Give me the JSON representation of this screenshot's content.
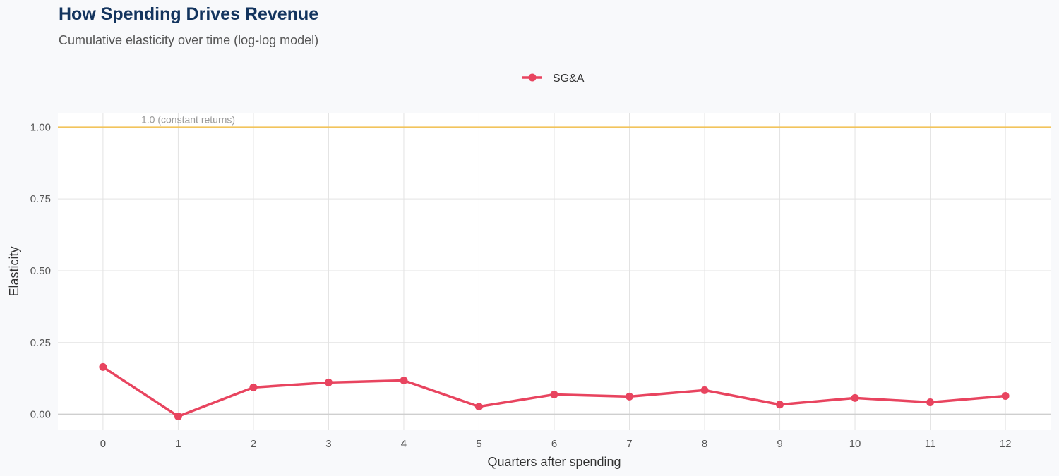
{
  "chart_data": {
    "type": "line",
    "title": "How Spending Drives Revenue",
    "subtitle": "Cumulative elasticity over time (log-log model)",
    "xlabel": "Quarters after spending",
    "ylabel": "Elasticity",
    "x": [
      0,
      1,
      2,
      3,
      4,
      5,
      6,
      7,
      8,
      9,
      10,
      11,
      12
    ],
    "xticks": [
      "0",
      "1",
      "2",
      "3",
      "4",
      "5",
      "6",
      "7",
      "8",
      "9",
      "10",
      "11",
      "12"
    ],
    "yticks": [
      "0.00",
      "0.25",
      "0.50",
      "0.75",
      "1.00"
    ],
    "ylim": [
      -0.055,
      1.05
    ],
    "xlim": [
      -0.6,
      12.6
    ],
    "grid": true,
    "legend_position": "top",
    "series": [
      {
        "name": "SG&A",
        "color": "#e8445f",
        "values": [
          0.165,
          -0.007,
          0.094,
          0.111,
          0.118,
          0.027,
          0.069,
          0.062,
          0.084,
          0.034,
          0.057,
          0.042,
          0.064
        ]
      }
    ],
    "reference_line": {
      "y": 1.0,
      "label": "1.0 (constant returns)",
      "color": "#f2c45c"
    }
  }
}
